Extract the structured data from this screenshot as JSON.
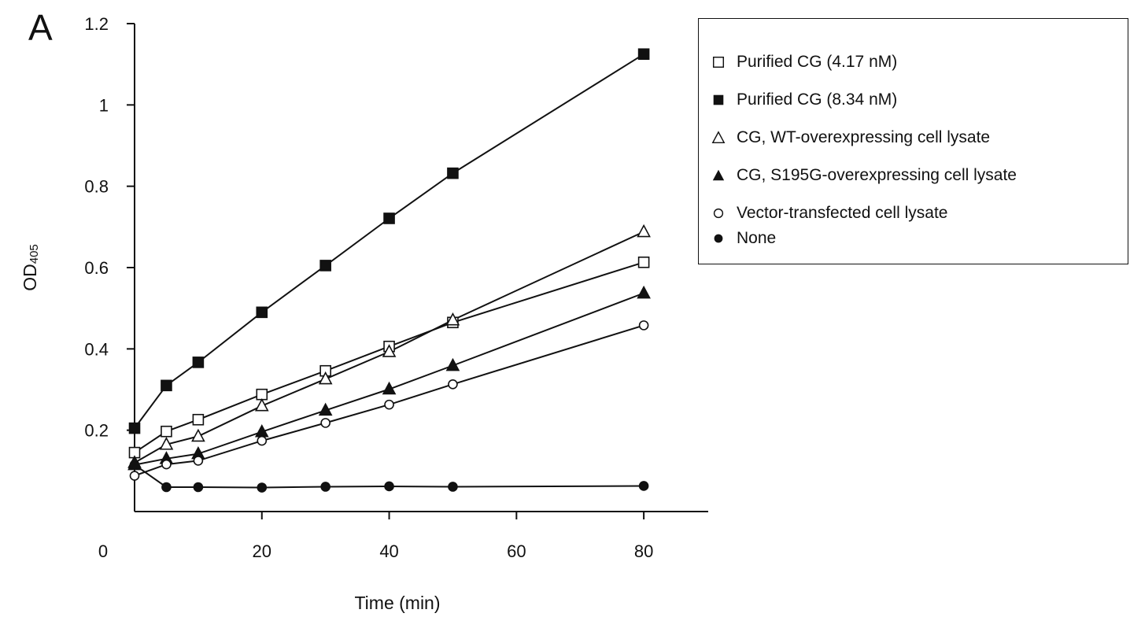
{
  "panel_label": "A",
  "chart_data": {
    "type": "line",
    "xlabel": "Time (min)",
    "ylabel": "OD",
    "ylabel_subscript": "405",
    "xlim": [
      0,
      90
    ],
    "ylim": [
      0,
      1.2
    ],
    "x_ticks": [
      0,
      20,
      40,
      60,
      80
    ],
    "y_ticks": [
      0.2,
      0.4,
      0.6,
      0.8,
      1,
      1.2
    ],
    "x_tick_labels": [
      "0",
      "20",
      "40",
      "60",
      "80"
    ],
    "y_tick_labels": [
      "0.2",
      "0.4",
      "0.6",
      "0.8",
      "1",
      "1.2"
    ],
    "grid": false,
    "legend_position": "top-right",
    "series": [
      {
        "name": "Purified CG (4.17 nM)",
        "marker": "square-open",
        "x": [
          0,
          5,
          10,
          20,
          30,
          40,
          50,
          80
        ],
        "y": [
          0.145,
          0.197,
          0.226,
          0.288,
          0.346,
          0.406,
          0.465,
          0.613
        ]
      },
      {
        "name": "Purified CG (8.34 nM)",
        "marker": "square-filled",
        "x": [
          0,
          5,
          10,
          20,
          30,
          40,
          50,
          80
        ],
        "y": [
          0.205,
          0.31,
          0.367,
          0.49,
          0.605,
          0.721,
          0.832,
          1.125
        ]
      },
      {
        "name": "CG, WT-overexpressing cell lysate",
        "marker": "triangle-open",
        "x": [
          0,
          5,
          10,
          20,
          30,
          40,
          50,
          80
        ],
        "y": [
          0.12,
          0.165,
          0.185,
          0.26,
          0.326,
          0.393,
          0.471,
          0.688
        ]
      },
      {
        "name": "CG, S195G-overexpressing cell lysate",
        "marker": "triangle-filled",
        "x": [
          0,
          5,
          10,
          20,
          30,
          40,
          50,
          80
        ],
        "y": [
          0.115,
          0.13,
          0.142,
          0.196,
          0.249,
          0.301,
          0.359,
          0.537
        ]
      },
      {
        "name": "Vector-transfected cell lysate",
        "marker": "circle-open",
        "x": [
          0,
          5,
          10,
          20,
          30,
          40,
          50,
          80
        ],
        "y": [
          0.088,
          0.116,
          0.125,
          0.174,
          0.218,
          0.263,
          0.313,
          0.458
        ]
      },
      {
        "name": "None",
        "marker": "circle-filled",
        "x": [
          0,
          5,
          10,
          20,
          30,
          40,
          50,
          80
        ],
        "y": [
          0.115,
          0.06,
          0.06,
          0.059,
          0.061,
          0.062,
          0.061,
          0.063
        ]
      }
    ]
  }
}
